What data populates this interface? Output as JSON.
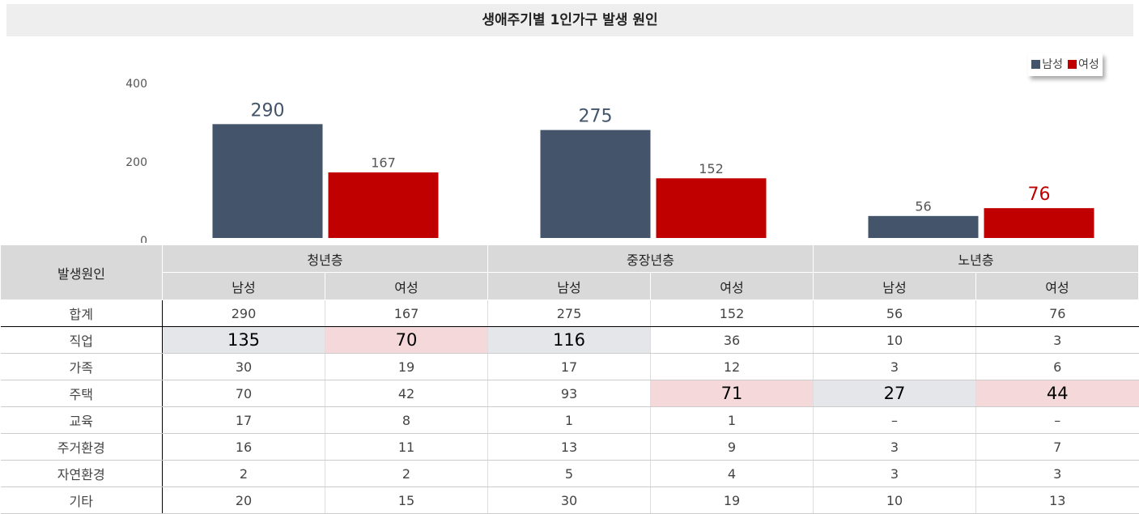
{
  "chart_data": {
    "type": "bar",
    "title": "생애주기별 1인가구 발생 원인",
    "categories": [
      "청년층",
      "중장년층",
      "노년층"
    ],
    "series": [
      {
        "name": "남성",
        "color": "#44546a",
        "values": [
          290,
          275,
          56
        ]
      },
      {
        "name": "여성",
        "color": "#c00000",
        "values": [
          167,
          152,
          76
        ]
      }
    ],
    "ylim": [
      0,
      400
    ],
    "yticks": [
      0,
      200,
      400
    ],
    "grid": false,
    "legend": "upper right"
  },
  "table": {
    "header": "발생원인",
    "total_label": "합계",
    "rows": [
      {
        "label": "직업",
        "values": [
          135,
          70,
          116,
          36,
          10,
          3
        ]
      },
      {
        "label": "가족",
        "values": [
          30,
          19,
          17,
          12,
          3,
          6
        ]
      },
      {
        "label": "주택",
        "values": [
          70,
          42,
          93,
          71,
          27,
          44
        ]
      },
      {
        "label": "교육",
        "values": [
          17,
          8,
          1,
          1,
          "–",
          "–"
        ]
      },
      {
        "label": "주거환경",
        "values": [
          16,
          11,
          13,
          9,
          3,
          7
        ]
      },
      {
        "label": "자연환경",
        "values": [
          2,
          2,
          5,
          4,
          3,
          3
        ]
      },
      {
        "label": "기타",
        "values": [
          20,
          15,
          30,
          19,
          10,
          13
        ]
      }
    ]
  }
}
